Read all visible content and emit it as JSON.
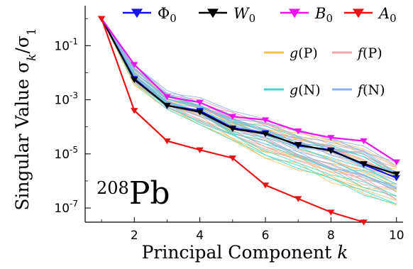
{
  "chart_data": {
    "type": "line",
    "x": [
      1,
      2,
      3,
      4,
      5,
      6,
      7,
      8,
      9,
      10
    ],
    "ylabel_text": "Singular Value σ",
    "ylabel_sub": "k",
    "ylabel_div": "/σ",
    "ylabel_sub2": "1",
    "xlabel_text": "Principal Component ",
    "xlabel_var": "k",
    "yscale": "log",
    "ylim": [
      3e-08,
      3.0
    ],
    "xlim": [
      0.5,
      10.2
    ],
    "xticks": [
      {
        "value": 2,
        "label": "2"
      },
      {
        "value": 4,
        "label": "4"
      },
      {
        "value": 6,
        "label": "6"
      },
      {
        "value": 8,
        "label": "8"
      },
      {
        "value": 10,
        "label": "10"
      }
    ],
    "yticks": [
      {
        "value": 0.1,
        "base": "10",
        "exp": "-1"
      },
      {
        "value": 0.001,
        "base": "10",
        "exp": "-3"
      },
      {
        "value": 1e-05,
        "base": "10",
        "exp": "-5"
      },
      {
        "value": 1e-07,
        "base": "10",
        "exp": "-7"
      }
    ],
    "annotation": {
      "mass": "208",
      "symbol": "Pb"
    },
    "series": [
      {
        "name": "Φ",
        "sub": "0",
        "color": "#1414e6",
        "marker": "triangle-down",
        "values": [
          1.0,
          0.006,
          0.0006,
          0.0004,
          9e-05,
          6e-05,
          2e-05,
          1.4e-05,
          4e-06,
          1.3e-06
        ]
      },
      {
        "name": "W",
        "sub": "0",
        "color": "#000000",
        "marker": "triangle-down",
        "values": [
          1.0,
          0.0055,
          0.00062,
          0.00035,
          8.5e-05,
          5.5e-05,
          2.2e-05,
          1.3e-05,
          4.3e-06,
          1.8e-06
        ]
      },
      {
        "name": "B",
        "sub": "0",
        "color": "#ee14ee",
        "marker": "triangle-down",
        "values": [
          1.0,
          0.02,
          0.0013,
          0.0008,
          0.00024,
          0.00018,
          7e-05,
          4e-05,
          3e-05,
          5e-06
        ]
      },
      {
        "name": "A",
        "sub": "0",
        "color": "#e61414",
        "marker": "triangle-down",
        "values": [
          1.0,
          0.0004,
          3e-05,
          1.4e-05,
          7e-06,
          7e-07,
          2.2e-07,
          7e-08,
          3e-08,
          2e-08
        ]
      }
    ],
    "bands": [
      {
        "name": "g(P)",
        "color": "#f5bf55",
        "lower": [
          1.0,
          0.0032,
          0.00045,
          0.00012,
          3e-05,
          6e-06,
          2.5e-06,
          8e-07,
          2.5e-07,
          1.2e-07
        ],
        "upper": [
          1.0,
          0.012,
          0.0015,
          0.0008,
          0.0002,
          0.00013,
          6e-05,
          3.2e-05,
          1.5e-05,
          3.5e-06
        ]
      },
      {
        "name": "f(P)",
        "color": "#f5a5a5",
        "lower": [
          1.0,
          0.0045,
          0.0005,
          0.00015,
          5e-05,
          1.5e-05,
          5e-06,
          1.8e-06,
          6e-07,
          2e-07
        ],
        "upper": [
          1.0,
          0.018,
          0.0018,
          0.001,
          0.00035,
          0.00015,
          7e-05,
          3.5e-05,
          1.8e-05,
          4e-06
        ]
      },
      {
        "name": "g(N)",
        "color": "#3fd8cf",
        "lower": [
          1.0,
          0.0038,
          0.00045,
          0.00012,
          3e-05,
          9e-06,
          2.8e-06,
          1.1e-06,
          3e-07,
          1.4e-07
        ],
        "upper": [
          1.0,
          0.015,
          0.0016,
          0.0009,
          0.00025,
          0.00012,
          5e-05,
          2.5e-05,
          1.2e-05,
          3e-06
        ]
      },
      {
        "name": "f(N)",
        "color": "#8fb0ea",
        "lower": [
          1.0,
          0.005,
          0.0006,
          0.0002,
          6e-05,
          2e-05,
          8e-06,
          3e-06,
          1e-06,
          3e-07
        ],
        "upper": [
          1.0,
          0.02,
          0.0022,
          0.0012,
          0.0004,
          0.0002,
          8e-05,
          4e-05,
          2e-05,
          6e-06
        ]
      }
    ],
    "legend_position": "top"
  }
}
